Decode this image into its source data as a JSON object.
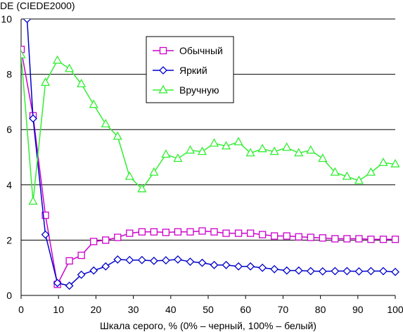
{
  "chart_data": {
    "type": "line",
    "title": "",
    "ylabel": "DE (CIEDE2000)",
    "xlabel": "Шкала серого, % (0% – черный, 100% – белый)",
    "xlim": [
      0,
      100
    ],
    "ylim": [
      0,
      10
    ],
    "x_ticks": [
      "0",
      "10",
      "20",
      "30",
      "40",
      "50",
      "60",
      "70",
      "80",
      "90",
      "100"
    ],
    "y_ticks": [
      "0",
      "2",
      "4",
      "6",
      "8",
      "10"
    ],
    "grid": "horizontal",
    "legend_position": "upper-center",
    "series": [
      {
        "name": "Обычный",
        "color": "#cc00cc",
        "marker": "square",
        "x": [
          0,
          3.2,
          6.5,
          9.7,
          12.9,
          16.1,
          19.4,
          22.6,
          25.8,
          29,
          32.3,
          35.5,
          38.7,
          41.9,
          45.2,
          48.4,
          51.6,
          54.8,
          58.1,
          61.3,
          64.5,
          67.7,
          71,
          74.2,
          77.4,
          80.6,
          83.9,
          87.1,
          90.3,
          93.5,
          96.8,
          100
        ],
        "values": [
          8.9,
          6.5,
          2.9,
          0.4,
          1.25,
          1.45,
          1.95,
          2.0,
          2.1,
          2.25,
          2.3,
          2.3,
          2.28,
          2.3,
          2.3,
          2.33,
          2.3,
          2.25,
          2.25,
          2.25,
          2.2,
          2.15,
          2.15,
          2.12,
          2.1,
          2.08,
          2.05,
          2.05,
          2.05,
          2.03,
          2.03,
          2.03
        ]
      },
      {
        "name": "Яркий",
        "color": "#0000cc",
        "marker": "diamond",
        "x": [
          1.6,
          3.2,
          6.5,
          9.7,
          12.9,
          16.1,
          19.4,
          22.6,
          25.8,
          29,
          32.3,
          35.5,
          38.7,
          41.9,
          45.2,
          48.4,
          51.6,
          54.8,
          58.1,
          61.3,
          64.5,
          67.7,
          71,
          74.2,
          77.4,
          80.6,
          83.9,
          87.1,
          90.3,
          93.5,
          96.8,
          100
        ],
        "values": [
          10.0,
          6.4,
          2.2,
          0.45,
          0.35,
          0.75,
          0.9,
          1.05,
          1.3,
          1.28,
          1.28,
          1.25,
          1.27,
          1.3,
          1.22,
          1.18,
          1.1,
          1.1,
          1.05,
          1.05,
          1.0,
          0.95,
          0.9,
          0.9,
          0.88,
          0.87,
          0.88,
          0.88,
          0.87,
          0.88,
          0.88,
          0.85
        ]
      },
      {
        "name": "Вручную",
        "color": "#33ee33",
        "marker": "triangle",
        "x": [
          0,
          3.2,
          6.5,
          9.7,
          12.9,
          16.1,
          19.4,
          22.6,
          25.8,
          29,
          32.3,
          35.5,
          38.7,
          41.9,
          45.2,
          48.4,
          51.6,
          54.8,
          58.1,
          61.3,
          64.5,
          67.7,
          71,
          74.2,
          77.4,
          80.6,
          83.9,
          87.1,
          90.3,
          93.5,
          96.8,
          100
        ],
        "values": [
          8.7,
          3.4,
          7.7,
          8.5,
          8.2,
          7.65,
          6.9,
          6.2,
          5.75,
          4.3,
          3.85,
          4.45,
          5.1,
          4.95,
          5.25,
          5.2,
          5.5,
          5.4,
          5.55,
          5.15,
          5.3,
          5.2,
          5.35,
          5.15,
          5.25,
          4.95,
          4.45,
          4.3,
          4.15,
          4.45,
          4.8,
          4.75
        ]
      }
    ]
  }
}
